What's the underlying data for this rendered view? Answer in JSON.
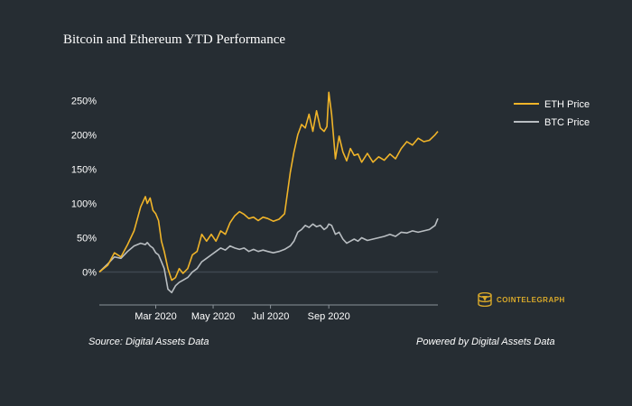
{
  "title": "Bitcoin and Ethereum YTD Performance",
  "source_text": "Source: Digital Assets Data",
  "powered_text": "Powered by Digital Assets Data",
  "logo_text": "COINTELEGRAPH",
  "colors": {
    "background": "#262d33",
    "eth": "#f0b429",
    "btc": "#b9bec2",
    "zero_line": "#3e474f",
    "axis": "#8a9299",
    "logo": "#d9a92a"
  },
  "chart_data": {
    "type": "line",
    "title": "Bitcoin and Ethereum YTD Performance",
    "x_unit": "day of 2020",
    "xlim": [
      1,
      361
    ],
    "ylim": [
      -0.48,
      2.65
    ],
    "xticks": [
      {
        "label": "Mar 2020",
        "day": 61
      },
      {
        "label": "May 2020",
        "day": 122
      },
      {
        "label": "Jul 2020",
        "day": 183
      },
      {
        "label": "Sep 2020",
        "day": 245
      }
    ],
    "yticks": [
      {
        "label": "0%",
        "value": 0
      },
      {
        "label": "50%",
        "value": 0.5
      },
      {
        "label": "100%",
        "value": 1.0
      },
      {
        "label": "150%",
        "value": 1.5
      },
      {
        "label": "200%",
        "value": 2.0
      },
      {
        "label": "250%",
        "value": 2.5
      }
    ],
    "legend_position": "top-right",
    "series": [
      {
        "name": "ETH Price",
        "color": "#f0b429",
        "x": [
          1,
          10,
          17,
          24,
          31,
          38,
          45,
          50,
          52,
          55,
          58,
          61,
          64,
          67,
          70,
          74,
          78,
          82,
          86,
          90,
          95,
          100,
          105,
          110,
          115,
          120,
          125,
          130,
          135,
          140,
          145,
          150,
          155,
          160,
          165,
          170,
          175,
          180,
          186,
          192,
          198,
          204,
          208,
          212,
          216,
          220,
          224,
          228,
          232,
          236,
          240,
          243,
          245,
          248,
          252,
          256,
          260,
          264,
          268,
          272,
          276,
          280,
          286,
          292,
          298,
          304,
          310,
          316,
          322,
          328,
          334,
          340,
          346,
          352,
          358,
          361
        ],
        "y": [
          0.0,
          0.1,
          0.28,
          0.22,
          0.4,
          0.6,
          0.95,
          1.1,
          1.0,
          1.08,
          0.9,
          0.85,
          0.75,
          0.45,
          0.3,
          0.05,
          -0.12,
          -0.08,
          0.05,
          -0.02,
          0.05,
          0.25,
          0.3,
          0.55,
          0.45,
          0.55,
          0.45,
          0.6,
          0.55,
          0.72,
          0.82,
          0.88,
          0.84,
          0.78,
          0.8,
          0.75,
          0.8,
          0.78,
          0.74,
          0.77,
          0.85,
          1.45,
          1.75,
          2.0,
          2.15,
          2.1,
          2.3,
          2.05,
          2.35,
          2.1,
          2.05,
          2.12,
          2.62,
          2.3,
          1.65,
          1.98,
          1.75,
          1.62,
          1.8,
          1.7,
          1.72,
          1.6,
          1.73,
          1.6,
          1.68,
          1.63,
          1.72,
          1.65,
          1.8,
          1.9,
          1.85,
          1.95,
          1.9,
          1.92,
          2.0,
          2.05
        ]
      },
      {
        "name": "BTC Price",
        "color": "#b9bec2",
        "x": [
          1,
          10,
          17,
          24,
          31,
          38,
          45,
          50,
          52,
          55,
          58,
          61,
          64,
          67,
          70,
          74,
          78,
          82,
          86,
          90,
          95,
          100,
          105,
          110,
          115,
          120,
          125,
          130,
          135,
          140,
          145,
          150,
          155,
          160,
          165,
          170,
          175,
          180,
          186,
          192,
          198,
          204,
          208,
          212,
          216,
          220,
          224,
          228,
          232,
          236,
          240,
          243,
          245,
          248,
          252,
          256,
          260,
          264,
          268,
          272,
          276,
          280,
          286,
          292,
          298,
          304,
          310,
          316,
          322,
          328,
          334,
          340,
          346,
          352,
          358,
          361
        ],
        "y": [
          0.0,
          0.12,
          0.22,
          0.2,
          0.3,
          0.38,
          0.42,
          0.4,
          0.43,
          0.38,
          0.35,
          0.28,
          0.25,
          0.15,
          0.05,
          -0.25,
          -0.3,
          -0.2,
          -0.15,
          -0.12,
          -0.08,
          0.0,
          0.05,
          0.15,
          0.2,
          0.25,
          0.3,
          0.35,
          0.32,
          0.38,
          0.35,
          0.33,
          0.35,
          0.3,
          0.33,
          0.3,
          0.32,
          0.3,
          0.28,
          0.3,
          0.33,
          0.38,
          0.45,
          0.58,
          0.62,
          0.68,
          0.65,
          0.7,
          0.66,
          0.68,
          0.62,
          0.65,
          0.7,
          0.68,
          0.55,
          0.58,
          0.48,
          0.42,
          0.45,
          0.48,
          0.45,
          0.5,
          0.46,
          0.48,
          0.5,
          0.52,
          0.55,
          0.52,
          0.58,
          0.57,
          0.6,
          0.58,
          0.6,
          0.62,
          0.68,
          0.78
        ]
      }
    ]
  }
}
